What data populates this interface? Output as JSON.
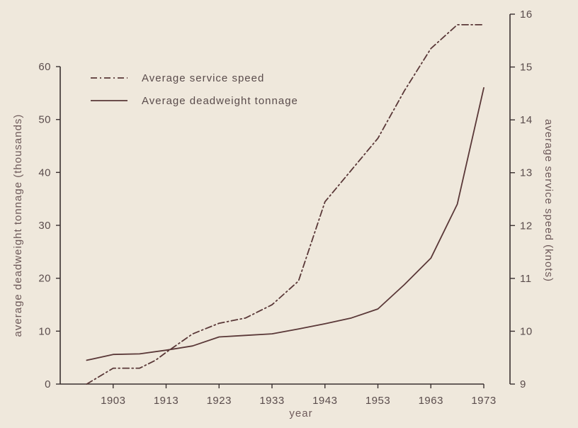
{
  "chart_data": {
    "type": "line",
    "title": "",
    "xlabel": "year",
    "ylabel_left": "average deadweight tonnage (thousands)",
    "ylabel_right": "average service speed (knots)",
    "x_ticks": [
      1903,
      1913,
      1923,
      1933,
      1943,
      1953,
      1963,
      1973
    ],
    "y_left_ticks": [
      0,
      10,
      20,
      30,
      40,
      50,
      60
    ],
    "y_right_ticks": [
      9,
      10,
      11,
      12,
      13,
      14,
      15,
      16
    ],
    "xlim": [
      1893,
      1973
    ],
    "ylim_left": [
      0,
      60
    ],
    "ylim_right": [
      9,
      16
    ],
    "grid": false,
    "legend_position": "top-left",
    "series": [
      {
        "name": "Average service speed",
        "axis": "right",
        "style": "dash-dot",
        "color": "#5a3838",
        "x": [
          1898,
          1903,
          1908,
          1911,
          1913,
          1918,
          1923,
          1928,
          1933,
          1938,
          1943,
          1948,
          1953,
          1958,
          1963,
          1968,
          1973
        ],
        "y": [
          9.0,
          9.3,
          9.3,
          9.45,
          9.6,
          9.95,
          10.15,
          10.25,
          10.5,
          10.95,
          12.45,
          13.05,
          13.65,
          14.55,
          15.35,
          15.8,
          15.8
        ]
      },
      {
        "name": "Average deadweight tonnage",
        "axis": "left",
        "style": "solid",
        "color": "#5a3838",
        "x": [
          1898,
          1903,
          1908,
          1913,
          1918,
          1923,
          1928,
          1933,
          1938,
          1943,
          1948,
          1953,
          1958,
          1963,
          1968,
          1973
        ],
        "y": [
          4.5,
          5.6,
          5.7,
          6.4,
          7.2,
          8.9,
          9.2,
          9.5,
          10.4,
          11.4,
          12.5,
          14.2,
          18.8,
          23.8,
          34.0,
          56.0
        ]
      }
    ]
  }
}
